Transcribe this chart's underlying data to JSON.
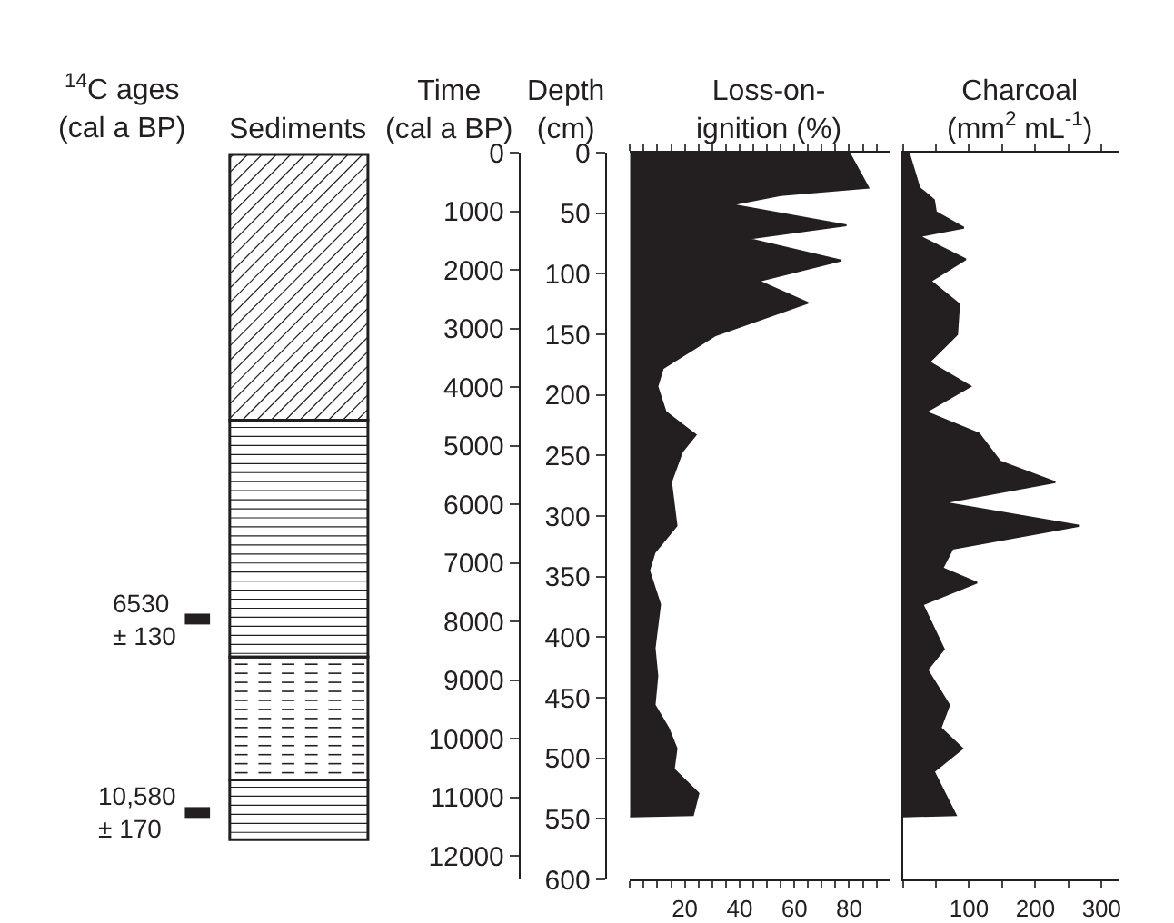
{
  "chart_data": [
    {
      "type": "other",
      "title": "Sediments",
      "annotations": [
        "$^{14}$C ages (cal a BP)",
        "6530\n± 130",
        "10,580\n± 170"
      ]
    },
    {
      "type": "area",
      "orientation": "horizontal",
      "title": "Loss-on-ignition (%)",
      "color": "#231f20",
      "ylabel": "Depth (cm)",
      "y2label": "Time (cal a BP)",
      "x": [
        0,
        29,
        35,
        43,
        60,
        71,
        89,
        106,
        124,
        151,
        171,
        178,
        193,
        214,
        233,
        247,
        272,
        308,
        330,
        345,
        373,
        409,
        432,
        456,
        475,
        492,
        509,
        529,
        547,
        548
      ],
      "values": [
        80,
        87,
        55,
        37,
        79,
        43,
        77,
        47,
        65,
        31,
        17,
        12,
        10,
        13,
        24,
        19,
        15,
        17,
        9,
        7,
        11,
        9,
        10,
        9,
        14,
        17,
        16,
        25,
        23,
        0
      ],
      "xlim": [
        0,
        95
      ],
      "xticks": [
        {
          "value": 0,
          "label": null
        },
        {
          "value": 5,
          "label": null
        },
        {
          "value": 10,
          "label": null
        },
        {
          "value": 15,
          "label": null
        },
        20,
        {
          "value": 25,
          "label": null
        },
        {
          "value": 30,
          "label": null
        },
        {
          "value": 35,
          "label": null
        },
        40,
        {
          "value": 45,
          "label": null
        },
        {
          "value": 50,
          "label": null
        },
        {
          "value": 55,
          "label": null
        },
        60,
        {
          "value": 65,
          "label": null
        },
        {
          "value": 70,
          "label": null
        },
        {
          "value": 75,
          "label": null
        },
        80,
        {
          "value": 85,
          "label": null
        },
        {
          "value": 90,
          "label": null
        }
      ],
      "ylim": [
        600,
        0
      ],
      "yticks": [
        0,
        50,
        100,
        150,
        200,
        250,
        300,
        350,
        400,
        450,
        500,
        550,
        600
      ],
      "y2lim": [
        12400,
        0
      ],
      "y2ticks": [
        0,
        1000,
        2000,
        3000,
        4000,
        5000,
        6000,
        7000,
        8000,
        9000,
        10000,
        11000,
        12000
      ]
    },
    {
      "type": "area",
      "orientation": "horizontal",
      "title": "Charcoal (mm$^{2}$ mL$^{-1}$)",
      "color": "#231f20",
      "tick_labels": "x",
      "x": [
        0,
        29,
        39,
        49,
        62,
        69,
        88,
        106,
        125,
        150,
        173,
        193,
        214,
        232,
        255,
        272,
        289,
        308,
        327,
        343,
        355,
        373,
        410,
        427,
        456,
        475,
        492,
        511,
        547,
        548
      ],
      "values": [
        9,
        25,
        47,
        50,
        92,
        25,
        95,
        42,
        85,
        82,
        40,
        102,
        35,
        115,
        147,
        230,
        62,
        267,
        75,
        60,
        112,
        30,
        62,
        37,
        70,
        57,
        90,
        47,
        80,
        0
      ],
      "xlim": [
        0,
        325
      ],
      "xticks": [
        {
          "value": 0,
          "label": null
        },
        {
          "value": 50,
          "label": null
        },
        100,
        {
          "value": 150,
          "label": null
        },
        200,
        {
          "value": 250,
          "label": null
        },
        300
      ],
      "ylim": [
        600,
        0
      ]
    }
  ]
}
